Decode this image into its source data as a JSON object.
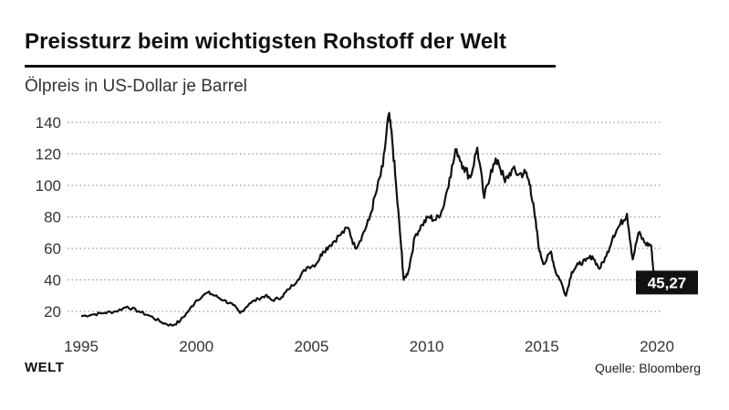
{
  "header": {
    "title": "Preissturz beim wichtigsten Rohstoff der Welt",
    "subtitle": "Ölpreis in US-Dollar je Barrel"
  },
  "footer": {
    "brand": "WELT",
    "source": "Quelle: Bloomberg"
  },
  "colors": {
    "line": "#111111",
    "grid": "#9a9a9a",
    "label_box": "#111111",
    "label_text": "#ffffff"
  },
  "chart_data": {
    "type": "line",
    "title": "Preissturz beim wichtigsten Rohstoff der Welt",
    "subtitle": "Ölpreis in US-Dollar je Barrel",
    "xlabel": "",
    "ylabel": "",
    "xlim": [
      1995,
      2020.5
    ],
    "ylim": [
      10,
      150
    ],
    "x_ticks": [
      1995,
      2000,
      2005,
      2010,
      2015,
      2020
    ],
    "y_ticks": [
      20,
      40,
      60,
      80,
      100,
      120,
      140
    ],
    "grid": "horizontal dotted",
    "end_label": "45,27",
    "series": [
      {
        "x": [
          1995.0,
          1995.5,
          1996.0,
          1996.5,
          1997.0,
          1997.5,
          1998.0,
          1998.5,
          1998.95,
          1999.3,
          1999.7,
          2000.0,
          2000.5,
          2000.8,
          2001.2,
          2001.6,
          2001.9,
          2002.3,
          2002.7,
          2003.0,
          2003.3,
          2003.7,
          2004.0,
          2004.4,
          2004.8,
          2005.2,
          2005.5,
          2005.8,
          2006.2,
          2006.6,
          2006.9,
          2007.2,
          2007.5,
          2007.8,
          2008.1,
          2008.35,
          2008.5,
          2008.7,
          2008.9,
          2009.0,
          2009.2,
          2009.5,
          2009.8,
          2010.1,
          2010.4,
          2010.7,
          2011.0,
          2011.3,
          2011.6,
          2011.9,
          2012.2,
          2012.5,
          2012.8,
          2013.1,
          2013.4,
          2013.7,
          2014.0,
          2014.3,
          2014.5,
          2014.7,
          2014.9,
          2015.1,
          2015.4,
          2015.6,
          2015.8,
          2016.05,
          2016.3,
          2016.6,
          2016.9,
          2017.2,
          2017.5,
          2017.8,
          2018.1,
          2018.4,
          2018.7,
          2018.95,
          2019.2,
          2019.5,
          2019.75,
          2019.85
        ],
        "values": [
          17,
          18,
          19,
          20,
          23,
          20,
          17,
          13,
          11,
          14,
          21,
          27,
          32,
          30,
          27,
          24,
          19,
          25,
          28,
          30,
          27,
          29,
          34,
          40,
          48,
          50,
          58,
          62,
          68,
          73,
          60,
          68,
          78,
          95,
          112,
          145,
          130,
          95,
          60,
          40,
          45,
          68,
          75,
          80,
          78,
          85,
          105,
          123,
          112,
          105,
          124,
          92,
          110,
          116,
          102,
          110,
          107,
          108,
          100,
          80,
          58,
          50,
          58,
          45,
          40,
          30,
          45,
          50,
          52,
          55,
          47,
          55,
          68,
          75,
          82,
          53,
          70,
          63,
          62,
          45.27
        ]
      }
    ]
  }
}
